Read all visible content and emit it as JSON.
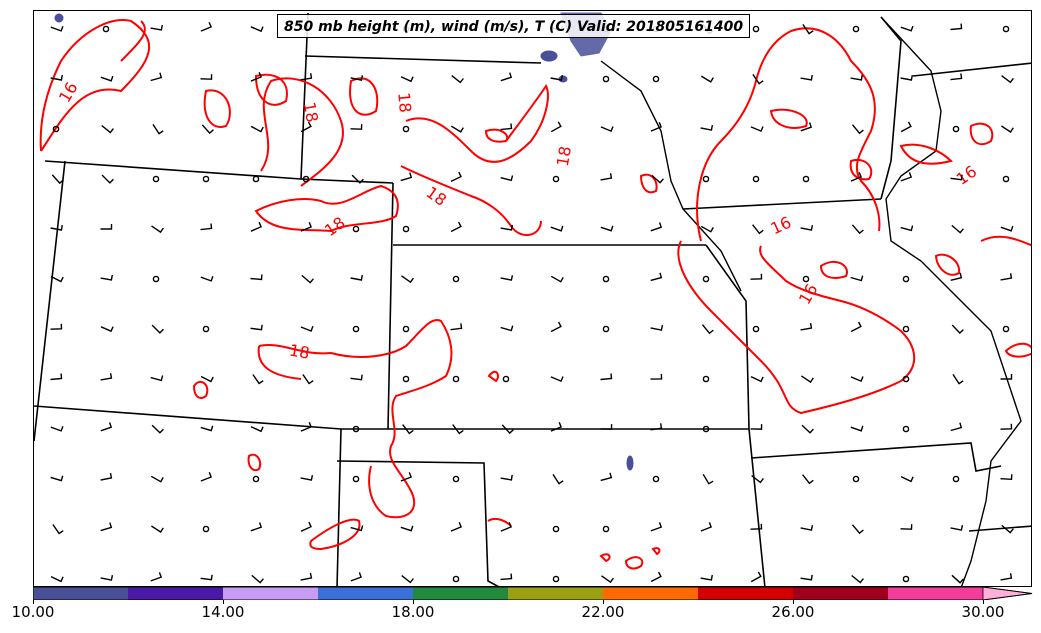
{
  "title": "850 mb height (m), wind (m/s), T (C) Valid: 201805161400",
  "contour_labels": [
    "16",
    "18",
    "18",
    "18",
    "18",
    "18",
    "18",
    "16",
    "16",
    "16",
    "18"
  ],
  "colorbar": {
    "tick_labels": [
      "10.00",
      "14.00",
      "18.00",
      "22.00",
      "26.00",
      "30.00"
    ],
    "colors": [
      "#4a4f9a",
      "#4a1aa6",
      "#c89bf5",
      "#3a70d8",
      "#228a3c",
      "#9aa012",
      "#ff6a00",
      "#d40000",
      "#a0001c",
      "#f23d9a",
      "#ffb0d8"
    ]
  },
  "colors": {
    "contour": "#ff0000",
    "boundaries": "#000000",
    "shading": "#4a4f9a"
  }
}
